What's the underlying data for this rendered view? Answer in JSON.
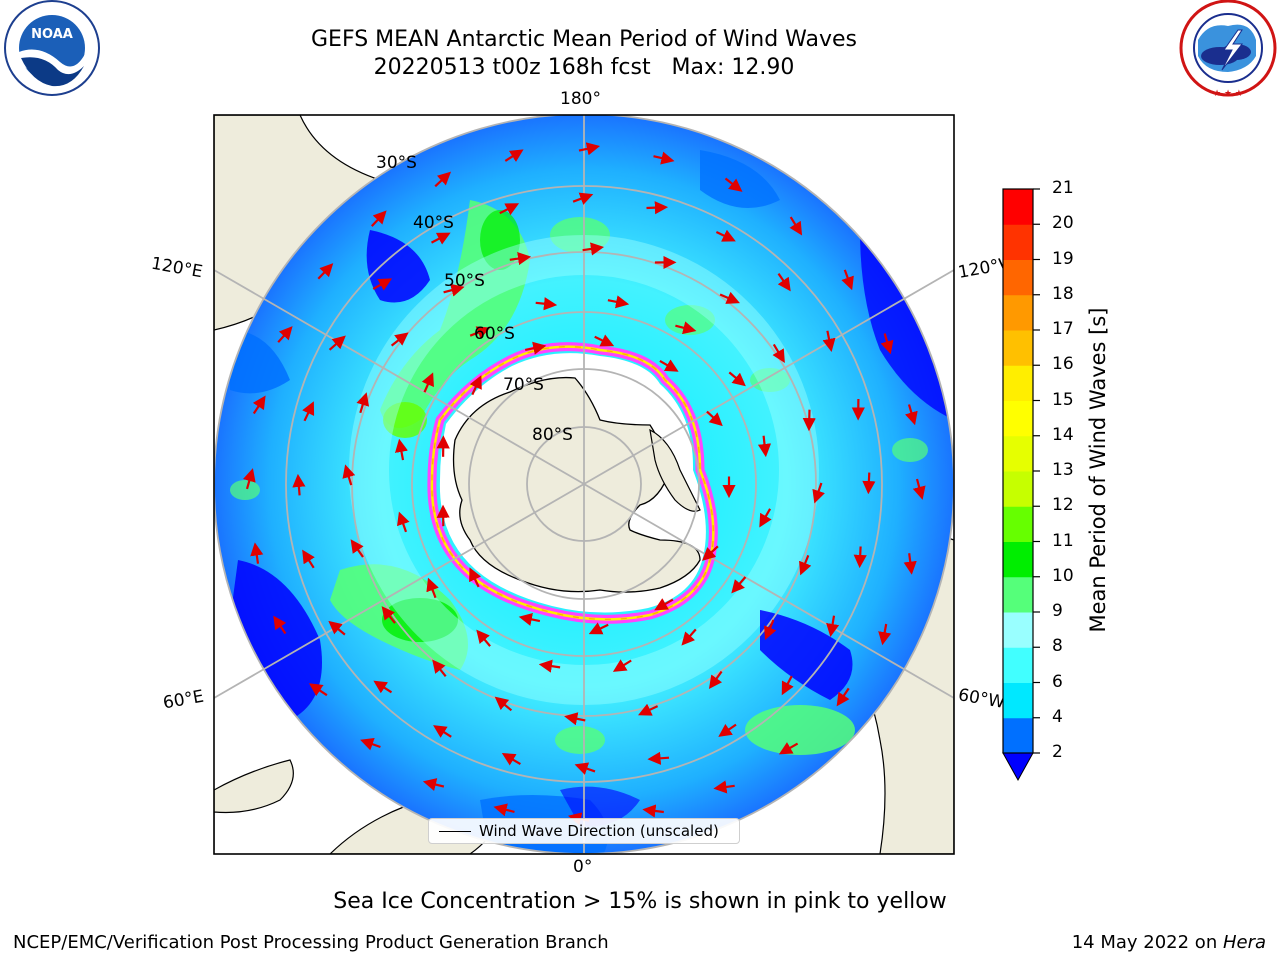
{
  "header": {
    "title_line1": "GEFS MEAN Antarctic Mean Period of Wind Waves",
    "title_line2": "20220513 t00z 168h fcst   Max: 12.90"
  },
  "logos": {
    "left": {
      "name": "noaa-logo",
      "text": "NOAA",
      "ring_text": "NATIONAL OCEANIC AND ATMOSPHERIC ADMINISTRATION · U.S. DEPARTMENT OF COMMERCE"
    },
    "right": {
      "name": "nws-logo",
      "ring_text": "NATIONAL WEATHER SERVICE"
    }
  },
  "map": {
    "projection": "south-polar-stereographic",
    "longitude_labels": {
      "top": "180°",
      "bottom": "0°",
      "upper_left": "120°E",
      "upper_right": "120°W",
      "lower_left": "60°E",
      "lower_right": "60°W"
    },
    "latitude_labels": [
      "30°S",
      "40°S",
      "50°S",
      "60°S",
      "70°S",
      "80°S"
    ],
    "colors": {
      "land": "#eeecdc",
      "graticule": "#b4b4b4",
      "arrow": "#e00000",
      "sea_ice_edge": [
        "#ff44ff",
        "#ffaa00",
        "#ffee00"
      ]
    },
    "legend_label": "Wind Wave Direction (unscaled)"
  },
  "colorbar": {
    "title": "Mean Period of Wind Waves [s]",
    "ticks": [
      "2",
      "4",
      "6",
      "8",
      "9",
      "10",
      "11",
      "12",
      "13",
      "14",
      "15",
      "16",
      "17",
      "18",
      "19",
      "20",
      "21"
    ],
    "colors": [
      "#0070ff",
      "#00e8ff",
      "#41ffff",
      "#99ffff",
      "#55ff7a",
      "#00ee00",
      "#66ff00",
      "#c6ff00",
      "#e6ff00",
      "#ffff00",
      "#ffee00",
      "#ffc000",
      "#ff9900",
      "#ff6600",
      "#ff3300",
      "#ff0000"
    ],
    "under_color": "#0000ff"
  },
  "caption": "Sea Ice Concentration > 15% is shown in pink to yellow",
  "footer": {
    "left": "NCEP/EMC/Verification Post Processing Product Generation Branch",
    "right_prefix": "14 May 2022 on ",
    "right_host": "Hera"
  }
}
